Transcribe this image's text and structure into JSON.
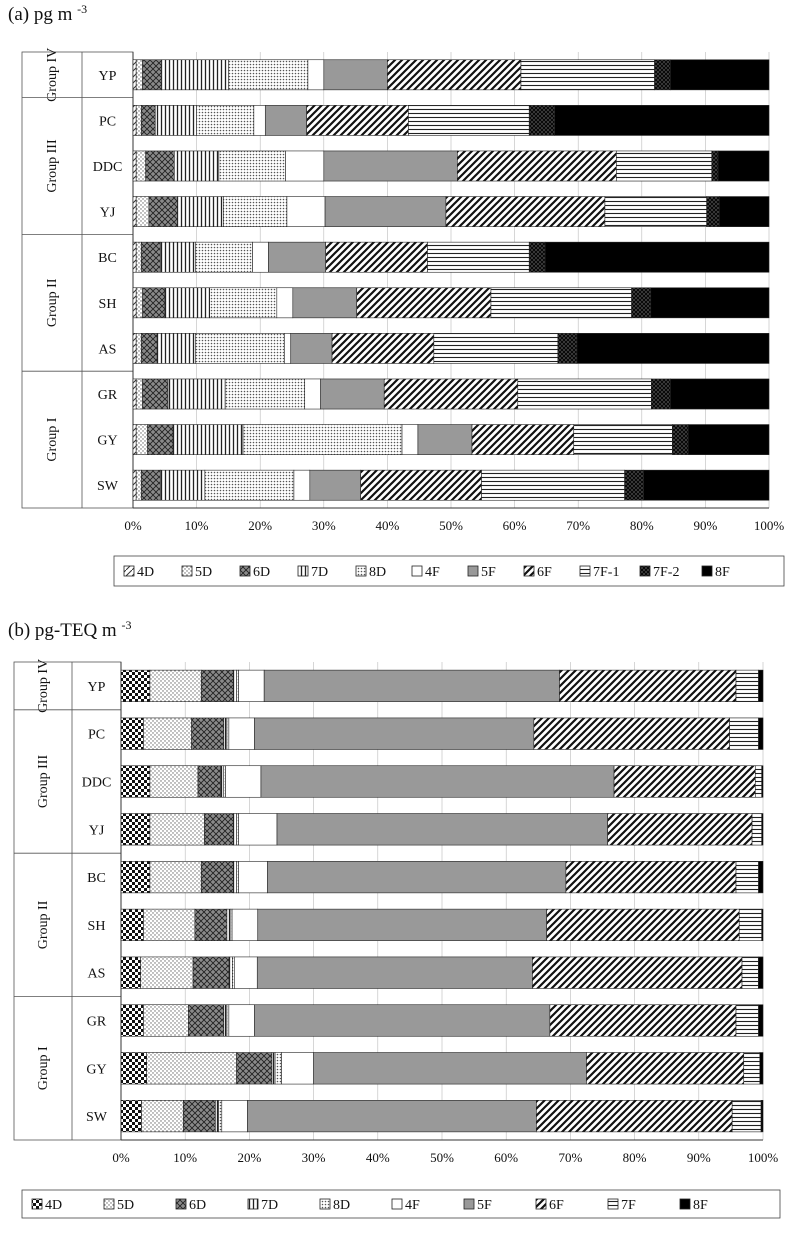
{
  "chart_data": [
    {
      "type": "bar",
      "stacked": "percent",
      "orientation": "horizontal",
      "title": "(a) pg m",
      "title_sup": "-3",
      "categories": [
        "YP",
        "PC",
        "DDC",
        "YJ",
        "BC",
        "SH",
        "AS",
        "GR",
        "GY",
        "SW"
      ],
      "groups": [
        {
          "label": "Group IV",
          "members": [
            "YP"
          ]
        },
        {
          "label": "Group III",
          "members": [
            "PC",
            "DDC",
            "YJ"
          ]
        },
        {
          "label": "Group II",
          "members": [
            "BC",
            "SH",
            "AS"
          ]
        },
        {
          "label": "Group I",
          "members": [
            "GR",
            "GY",
            "SW"
          ]
        }
      ],
      "x_ticks": [
        "0%",
        "10%",
        "20%",
        "30%",
        "40%",
        "50%",
        "60%",
        "70%",
        "80%",
        "90%",
        "100%"
      ],
      "xlim": [
        0,
        100
      ],
      "legend_position": "bottom",
      "series": [
        {
          "name": "4D",
          "pattern": "diag-light",
          "values": [
            0.5,
            0.5,
            0.5,
            0.5,
            0.5,
            0.5,
            0.5,
            0.5,
            0.5,
            0.5
          ]
        },
        {
          "name": "5D",
          "pattern": "dots",
          "values": [
            1.0,
            0.8,
            1.5,
            2.0,
            0.8,
            1.0,
            0.8,
            1.0,
            1.8,
            0.8
          ]
        },
        {
          "name": "6D",
          "pattern": "crosshatch-gray",
          "values": [
            3.0,
            2.2,
            4.5,
            4.5,
            3.0,
            3.5,
            2.5,
            4.0,
            4.0,
            3.0
          ]
        },
        {
          "name": "7D",
          "pattern": "vertical",
          "values": [
            10.5,
            6.5,
            7.0,
            7.2,
            5.5,
            7.0,
            6.0,
            9.0,
            11.0,
            7.0
          ]
        },
        {
          "name": "8D",
          "pattern": "dots-dense",
          "values": [
            12.5,
            9.0,
            10.5,
            10.0,
            9.0,
            10.5,
            14.0,
            12.5,
            25.0,
            14.0
          ]
        },
        {
          "name": "4F",
          "pattern": "white",
          "values": [
            2.5,
            1.8,
            6.0,
            6.0,
            2.5,
            2.5,
            1.0,
            2.5,
            2.5,
            2.5
          ]
        },
        {
          "name": "5F",
          "pattern": "gray",
          "values": [
            10.0,
            6.5,
            21.0,
            19.0,
            9.0,
            10.0,
            6.5,
            10.0,
            8.5,
            8.0
          ]
        },
        {
          "name": "6F",
          "pattern": "diag-dense",
          "values": [
            21.0,
            16.0,
            25.0,
            25.0,
            16.0,
            21.0,
            16.0,
            21.0,
            16.0,
            19.0
          ]
        },
        {
          "name": "7F-1",
          "pattern": "horizontal",
          "values": [
            21.0,
            19.0,
            15.0,
            16.0,
            16.0,
            22.0,
            19.5,
            21.0,
            15.5,
            22.5
          ]
        },
        {
          "name": "7F-2",
          "pattern": "crosshatch-dark",
          "values": [
            2.5,
            4.0,
            1.0,
            2.0,
            2.5,
            3.0,
            3.0,
            3.0,
            2.5,
            3.0
          ]
        },
        {
          "name": "8F",
          "pattern": "black",
          "values": [
            15.5,
            33.7,
            8.0,
            7.8,
            35.2,
            18.5,
            30.2,
            15.5,
            12.7,
            19.7
          ]
        }
      ]
    },
    {
      "type": "bar",
      "stacked": "percent",
      "orientation": "horizontal",
      "title": "(b) pg-TEQ m",
      "title_sup": "-3",
      "categories": [
        "YP",
        "PC",
        "DDC",
        "YJ",
        "BC",
        "SH",
        "AS",
        "GR",
        "GY",
        "SW"
      ],
      "groups": [
        {
          "label": "Group IV",
          "members": [
            "YP"
          ]
        },
        {
          "label": "Group III",
          "members": [
            "PC",
            "DDC",
            "YJ"
          ]
        },
        {
          "label": "Group II",
          "members": [
            "BC",
            "SH",
            "AS"
          ]
        },
        {
          "label": "Group I",
          "members": [
            "GR",
            "GY",
            "SW"
          ]
        }
      ],
      "x_ticks": [
        "0%",
        "10%",
        "20%",
        "30%",
        "40%",
        "50%",
        "60%",
        "70%",
        "80%",
        "90%",
        "100%"
      ],
      "xlim": [
        0,
        100
      ],
      "legend_position": "bottom",
      "series": [
        {
          "name": "4D",
          "pattern": "checker",
          "values": [
            4.5,
            3.5,
            4.5,
            4.5,
            4.5,
            3.5,
            3.0,
            3.5,
            4.0,
            3.2
          ]
        },
        {
          "name": "5D",
          "pattern": "dots",
          "values": [
            8.0,
            7.5,
            7.5,
            8.5,
            8.0,
            8.0,
            8.0,
            7.0,
            14.0,
            6.5
          ]
        },
        {
          "name": "6D",
          "pattern": "crosshatch-gray",
          "values": [
            5.0,
            5.0,
            3.5,
            4.5,
            5.0,
            5.0,
            5.5,
            5.5,
            5.5,
            5.0
          ]
        },
        {
          "name": "7D",
          "pattern": "vertical",
          "values": [
            0.5,
            0.5,
            0.5,
            0.5,
            0.5,
            0.5,
            0.5,
            0.5,
            0.5,
            0.5
          ]
        },
        {
          "name": "8D",
          "pattern": "dots-dense",
          "values": [
            0.3,
            0.3,
            0.3,
            0.3,
            0.3,
            0.3,
            0.3,
            0.3,
            1.0,
            0.5
          ]
        },
        {
          "name": "4F",
          "pattern": "white",
          "values": [
            4.0,
            4.0,
            5.5,
            6.0,
            4.5,
            4.0,
            3.5,
            4.0,
            5.0,
            4.0
          ]
        },
        {
          "name": "5F",
          "pattern": "gray",
          "values": [
            46.0,
            43.5,
            55.0,
            51.5,
            46.5,
            45.0,
            42.0,
            46.0,
            42.5,
            45.0
          ]
        },
        {
          "name": "6F",
          "pattern": "diag-dense",
          "values": [
            27.5,
            30.5,
            22.0,
            22.5,
            26.5,
            30.0,
            32.0,
            29.0,
            24.5,
            30.5
          ]
        },
        {
          "name": "7F",
          "pattern": "horizontal",
          "values": [
            3.5,
            4.5,
            1.0,
            1.5,
            3.5,
            3.5,
            2.5,
            3.5,
            2.5,
            4.5
          ]
        },
        {
          "name": "8F",
          "pattern": "black",
          "values": [
            0.7,
            0.7,
            0.2,
            0.2,
            0.7,
            0.2,
            0.7,
            0.7,
            0.5,
            0.3
          ]
        }
      ]
    }
  ]
}
